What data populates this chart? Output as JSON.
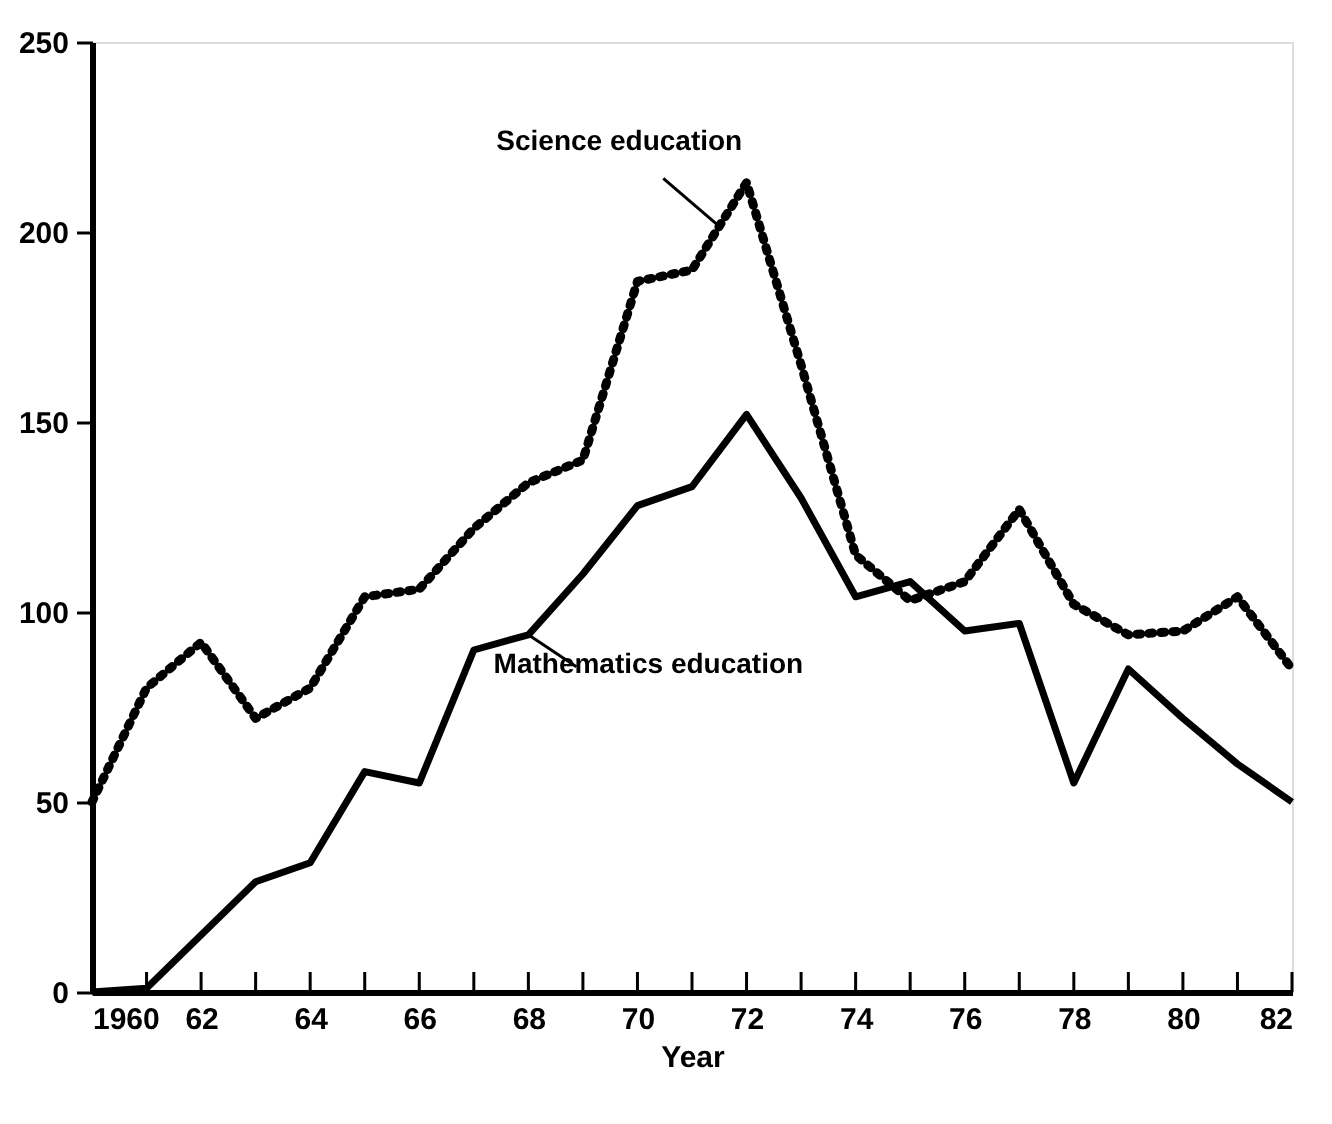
{
  "chart_data": {
    "type": "line",
    "xlabel": "Year",
    "x": [
      1960,
      1961,
      1962,
      1963,
      1964,
      1965,
      1966,
      1967,
      1968,
      1969,
      1970,
      1971,
      1972,
      1973,
      1974,
      1975,
      1976,
      1977,
      1978,
      1979,
      1980,
      1981,
      1982
    ],
    "series": [
      {
        "name": "Science education",
        "color": "#000000",
        "line_style": "dotted",
        "values": [
          50,
          80,
          92,
          72,
          80,
          104,
          106,
          122,
          134,
          140,
          187,
          190,
          213,
          165,
          115,
          103,
          108,
          127,
          102,
          94,
          95,
          104,
          85
        ]
      },
      {
        "name": "Mathematics education",
        "color": "#000000",
        "line_style": "solid",
        "values": [
          0,
          1,
          15,
          29,
          34,
          58,
          55,
          90,
          94,
          110,
          128,
          133,
          152,
          130,
          104,
          108,
          95,
          97,
          55,
          85,
          72,
          60,
          50
        ]
      }
    ],
    "xlim": [
      1960,
      1982
    ],
    "xticks": [
      {
        "value": 1960,
        "label": "1960"
      },
      {
        "value": 1961,
        "label": null
      },
      {
        "value": 1962,
        "label": "62"
      },
      {
        "value": 1963,
        "label": null
      },
      {
        "value": 1964,
        "label": "64"
      },
      {
        "value": 1965,
        "label": null
      },
      {
        "value": 1966,
        "label": "66"
      },
      {
        "value": 1967,
        "label": null
      },
      {
        "value": 1968,
        "label": "68"
      },
      {
        "value": 1969,
        "label": null
      },
      {
        "value": 1970,
        "label": "70"
      },
      {
        "value": 1971,
        "label": null
      },
      {
        "value": 1972,
        "label": "72"
      },
      {
        "value": 1973,
        "label": null
      },
      {
        "value": 1974,
        "label": "74"
      },
      {
        "value": 1975,
        "label": null
      },
      {
        "value": 1976,
        "label": "76"
      },
      {
        "value": 1977,
        "label": null
      },
      {
        "value": 1978,
        "label": "78"
      },
      {
        "value": 1979,
        "label": null
      },
      {
        "value": 1980,
        "label": "80"
      },
      {
        "value": 1981,
        "label": null
      },
      {
        "value": 1982,
        "label": "82"
      }
    ],
    "ylim": [
      0,
      250
    ],
    "yticks": [
      0,
      50,
      100,
      150,
      200,
      250
    ],
    "grid": false,
    "legend": false,
    "marker": "none"
  }
}
